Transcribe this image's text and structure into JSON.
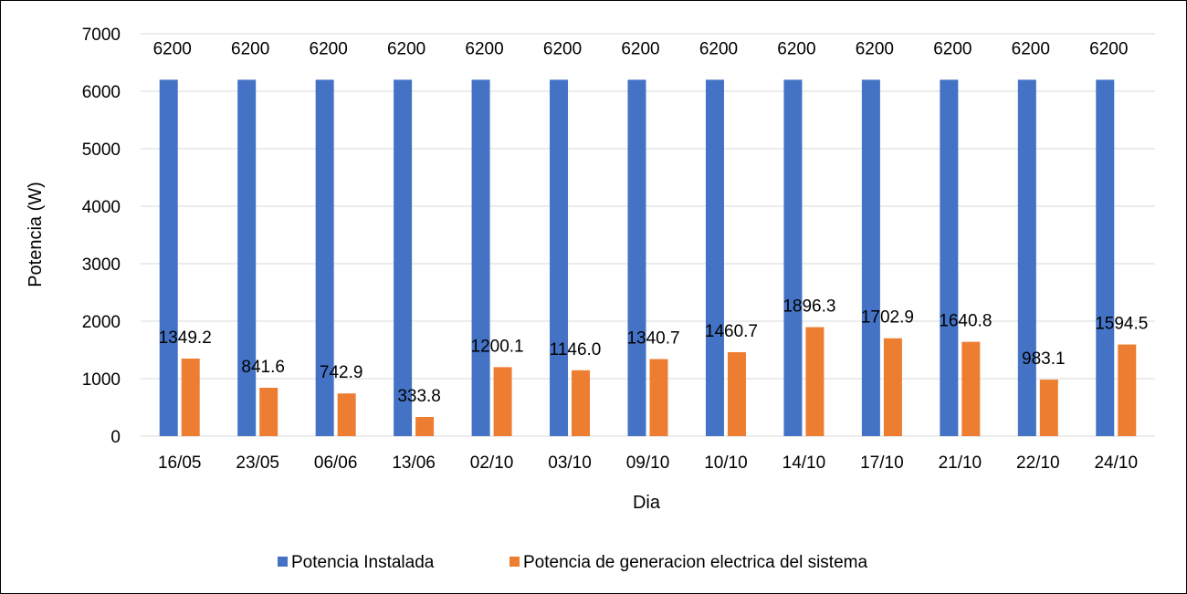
{
  "chart_data": {
    "type": "bar",
    "title": "",
    "xlabel": "Dia",
    "ylabel": "Potencia (W)",
    "ylim": [
      0,
      7000
    ],
    "yticks": [
      0,
      1000,
      2000,
      3000,
      4000,
      5000,
      6000,
      7000
    ],
    "grid": true,
    "legend_position": "bottom",
    "categories": [
      "16/05",
      "23/05",
      "06/06",
      "13/06",
      "02/10",
      "03/10",
      "09/10",
      "10/10",
      "14/10",
      "17/10",
      "21/10",
      "22/10",
      "24/10"
    ],
    "series": [
      {
        "name": "Potencia Instalada",
        "color": "#4472C4",
        "values": [
          6200,
          6200,
          6200,
          6200,
          6200,
          6200,
          6200,
          6200,
          6200,
          6200,
          6200,
          6200,
          6200
        ],
        "labels": [
          "6200",
          "6200",
          "6200",
          "6200",
          "6200",
          "6200",
          "6200",
          "6200",
          "6200",
          "6200",
          "6200",
          "6200",
          "6200"
        ]
      },
      {
        "name": "Potencia de generacion electrica del sistema",
        "color": "#ED7D31",
        "values": [
          1349.2,
          841.6,
          742.9,
          333.8,
          1200.1,
          1146.0,
          1340.7,
          1460.7,
          1896.3,
          1702.9,
          1640.8,
          983.1,
          1594.5
        ],
        "labels": [
          "1349.2",
          "841.6",
          "742.9",
          "333.8",
          "1200.1",
          "1146.0",
          "1340.7",
          "1460.7",
          "1896.3",
          "1702.9",
          "1640.8",
          "983.1",
          "1594.5"
        ]
      }
    ]
  }
}
